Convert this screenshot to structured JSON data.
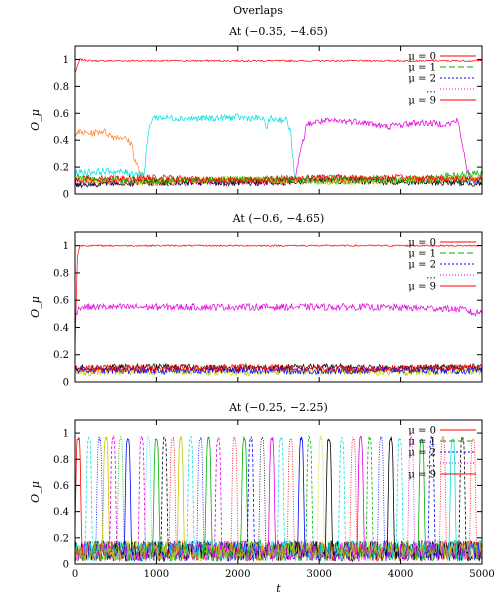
{
  "figure_title": "Overlaps",
  "chart_data": [
    {
      "type": "line",
      "title": "At (−0.35, −4.65)",
      "xlabel": "",
      "ylabel": "O_μ",
      "xlim": [
        0,
        5000
      ],
      "ylim": [
        0,
        1.1
      ],
      "x_ticks": [],
      "y_ticks": [
        "0",
        "0.2",
        "0.4",
        "0.6",
        "0.8",
        "1"
      ],
      "legend_position": "top-right",
      "legend": [
        {
          "label": "μ = 0",
          "color": "#ff0000",
          "dash": "solid"
        },
        {
          "label": "μ = 1",
          "color": "#00b000",
          "dash": "6,3"
        },
        {
          "label": "μ = 2",
          "color": "#0000ff",
          "dash": "2,2"
        },
        {
          "label": "…",
          "color": "#e000e0",
          "dash": "1,2"
        },
        {
          "label": "μ = 9",
          "color": "#ff0000",
          "dash": "solid"
        }
      ],
      "series": [
        {
          "name": "μ = 0",
          "color": "#ff0000",
          "x": [
            0,
            60,
            200,
            1000,
            2000,
            3000,
            4000,
            5000
          ],
          "y": [
            0.9,
            1.0,
            0.99,
            0.99,
            0.99,
            0.99,
            0.99,
            0.99
          ]
        },
        {
          "color": "#ff7f2a",
          "x": [
            0,
            200,
            350,
            450,
            600,
            700,
            730,
            830,
            900,
            1500,
            2500,
            3500,
            4500,
            5000
          ],
          "y": [
            0.46,
            0.45,
            0.47,
            0.43,
            0.42,
            0.37,
            0.26,
            0.12,
            0.1,
            0.11,
            0.1,
            0.11,
            0.1,
            0.11
          ]
        },
        {
          "color": "#00e0e0",
          "x": [
            0,
            400,
            850,
            900,
            950,
            1500,
            2000,
            2300,
            2350,
            2400,
            2600,
            2650,
            2700,
            3500,
            5000
          ],
          "y": [
            0.16,
            0.17,
            0.15,
            0.45,
            0.57,
            0.56,
            0.57,
            0.56,
            0.5,
            0.56,
            0.55,
            0.45,
            0.1,
            0.1,
            0.1
          ]
        },
        {
          "color": "#e000e0",
          "x": [
            0,
            2600,
            2700,
            2850,
            3000,
            3500,
            3800,
            4200,
            4600,
            4700,
            4780,
            4850,
            5000
          ],
          "y": [
            0.08,
            0.09,
            0.12,
            0.52,
            0.54,
            0.54,
            0.5,
            0.53,
            0.52,
            0.55,
            0.3,
            0.1,
            0.09
          ]
        },
        {
          "color": "#000000",
          "x": [
            0,
            1000,
            2000,
            3000,
            4000,
            5000
          ],
          "y": [
            0.07,
            0.09,
            0.08,
            0.1,
            0.09,
            0.08
          ]
        },
        {
          "color": "#c8c800",
          "x": [
            0,
            1000,
            2000,
            3000,
            4000,
            5000
          ],
          "y": [
            0.1,
            0.09,
            0.11,
            0.09,
            0.1,
            0.12
          ]
        },
        {
          "color": "#00b000",
          "x": [
            0,
            1000,
            2000,
            3000,
            4000,
            5000
          ],
          "y": [
            0.12,
            0.1,
            0.11,
            0.12,
            0.11,
            0.15
          ]
        },
        {
          "color": "#ff0000",
          "x": [
            0,
            1000,
            2000,
            3000,
            4000,
            5000
          ],
          "y": [
            0.11,
            0.12,
            0.1,
            0.12,
            0.12,
            0.11
          ]
        }
      ]
    },
    {
      "type": "line",
      "title": "At (−0.6, −4.65)",
      "xlabel": "",
      "ylabel": "O_μ",
      "xlim": [
        0,
        5000
      ],
      "ylim": [
        0,
        1.1
      ],
      "x_ticks": [],
      "y_ticks": [
        "0",
        "0.2",
        "0.4",
        "0.6",
        "0.8",
        "1"
      ],
      "legend_position": "top-right",
      "legend": [
        {
          "label": "μ = 0",
          "color": "#ff0000",
          "dash": "solid"
        },
        {
          "label": "μ = 1",
          "color": "#00b000",
          "dash": "6,3"
        },
        {
          "label": "μ = 2",
          "color": "#0000ff",
          "dash": "2,2"
        },
        {
          "label": "…",
          "color": "#e000e0",
          "dash": "1,2"
        },
        {
          "label": "μ = 9",
          "color": "#ff0000",
          "dash": "solid"
        }
      ],
      "series": [
        {
          "name": "μ = 0",
          "color": "#ff0000",
          "x": [
            0,
            30,
            60,
            1000,
            2000,
            3000,
            4000,
            5000
          ],
          "y": [
            0.25,
            0.92,
            1.0,
            1.0,
            1.0,
            1.0,
            1.0,
            1.0
          ]
        },
        {
          "color": "#e000e0",
          "x": [
            0,
            60,
            500,
            1500,
            2500,
            3500,
            4500,
            4800,
            4900,
            5000
          ],
          "y": [
            0.5,
            0.55,
            0.55,
            0.55,
            0.55,
            0.55,
            0.54,
            0.53,
            0.5,
            0.52
          ]
        },
        {
          "color": "#000000",
          "x": [
            0,
            1000,
            2000,
            3000,
            4000,
            5000
          ],
          "y": [
            0.1,
            0.11,
            0.1,
            0.11,
            0.1,
            0.11
          ]
        },
        {
          "color": "#c8c800",
          "x": [
            0,
            1000,
            2000,
            3000,
            4000,
            5000
          ],
          "y": [
            0.07,
            0.08,
            0.07,
            0.08,
            0.07,
            0.08
          ]
        },
        {
          "color": "#0000ff",
          "x": [
            0,
            1000,
            2000,
            3000,
            4000,
            5000
          ],
          "y": [
            0.09,
            0.08,
            0.09,
            0.08,
            0.09,
            0.08
          ]
        },
        {
          "color": "#ff0000",
          "x": [
            0,
            1000,
            2000,
            3000,
            4000,
            5000
          ],
          "y": [
            0.1,
            0.1,
            0.11,
            0.1,
            0.1,
            0.11
          ]
        }
      ]
    },
    {
      "type": "line",
      "title": "At (−0.25, −2.25)",
      "xlabel": "t",
      "ylabel": "O_μ",
      "xlim": [
        0,
        5000
      ],
      "ylim": [
        0,
        1.1
      ],
      "x_ticks": [
        "0",
        "1000",
        "2000",
        "3000",
        "4000",
        "5000"
      ],
      "y_ticks": [
        "0",
        "0.2",
        "0.4",
        "0.6",
        "0.8",
        "1"
      ],
      "legend_position": "top-right",
      "legend": [
        {
          "label": "μ = 0",
          "color": "#ff0000",
          "dash": "solid"
        },
        {
          "label": "μ = 1",
          "color": "#00b000",
          "dash": "6,3"
        },
        {
          "label": "μ = 2",
          "color": "#0000ff",
          "dash": "2,2"
        },
        {
          "label": "…",
          "color": "#e000e0",
          "dash": "1,2"
        },
        {
          "label": "μ = 9",
          "color": "#ff0000",
          "dash": "solid"
        }
      ],
      "spike_peaks": [
        {
          "t": 40,
          "color": "#ff0000"
        },
        {
          "t": 170,
          "color": "#00e0e0"
        },
        {
          "t": 300,
          "color": "#0000ff"
        },
        {
          "t": 380,
          "color": "#c8c800"
        },
        {
          "t": 470,
          "color": "#e000e0"
        },
        {
          "t": 560,
          "color": "#00b000"
        },
        {
          "t": 650,
          "color": "#0000ff"
        },
        {
          "t": 820,
          "color": "#e000e0"
        },
        {
          "t": 900,
          "color": "#00e0e0"
        },
        {
          "t": 1000,
          "color": "#00b000"
        },
        {
          "t": 1100,
          "color": "#000000"
        },
        {
          "t": 1200,
          "color": "#ff0000"
        },
        {
          "t": 1300,
          "color": "#c8c800"
        },
        {
          "t": 1420,
          "color": "#00e0e0"
        },
        {
          "t": 1540,
          "color": "#0000ff"
        },
        {
          "t": 1640,
          "color": "#00b000"
        },
        {
          "t": 1760,
          "color": "#e000e0"
        },
        {
          "t": 1960,
          "color": "#ff0000"
        },
        {
          "t": 2080,
          "color": "#00b000"
        },
        {
          "t": 2160,
          "color": "#0000ff"
        },
        {
          "t": 2300,
          "color": "#000000"
        },
        {
          "t": 2420,
          "color": "#e000e0"
        },
        {
          "t": 2530,
          "color": "#00e0e0"
        },
        {
          "t": 2650,
          "color": "#ff0000"
        },
        {
          "t": 2780,
          "color": "#0000ff"
        },
        {
          "t": 2880,
          "color": "#00b000"
        },
        {
          "t": 3020,
          "color": "#c8c800"
        },
        {
          "t": 3120,
          "color": "#000000"
        },
        {
          "t": 3280,
          "color": "#00e0e0"
        },
        {
          "t": 3420,
          "color": "#ff0000"
        },
        {
          "t": 3510,
          "color": "#e000e0"
        },
        {
          "t": 3620,
          "color": "#00b000"
        },
        {
          "t": 3760,
          "color": "#0000ff"
        },
        {
          "t": 3880,
          "color": "#000000"
        },
        {
          "t": 3990,
          "color": "#00e0e0"
        },
        {
          "t": 4130,
          "color": "#e000e0"
        },
        {
          "t": 4260,
          "color": "#00b000"
        },
        {
          "t": 4380,
          "color": "#0000ff"
        },
        {
          "t": 4520,
          "color": "#ff0000"
        },
        {
          "t": 4640,
          "color": "#00e0e0"
        },
        {
          "t": 4760,
          "color": "#000000"
        },
        {
          "t": 4890,
          "color": "#ff0000"
        }
      ]
    }
  ]
}
